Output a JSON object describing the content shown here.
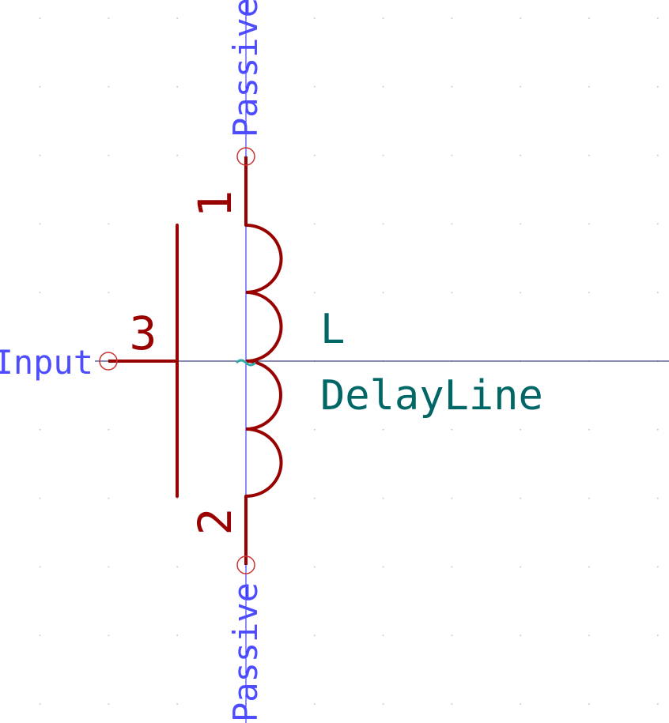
{
  "symbol": {
    "reference": "L",
    "value": "DelayLine",
    "colors": {
      "body": "#990000",
      "pin_name": "#4d4dff",
      "field": "#006666",
      "axis": "#1a1aff",
      "crosshair": "#1a1a66",
      "pin_end": "#cc3333",
      "anchor": "#33aaaa",
      "grid": "#cccccc"
    },
    "pins": [
      {
        "number": "1",
        "electrical_type": "Passive"
      },
      {
        "number": "2",
        "electrical_type": "Passive"
      },
      {
        "number": "3",
        "electrical_type": "Input"
      }
    ]
  }
}
